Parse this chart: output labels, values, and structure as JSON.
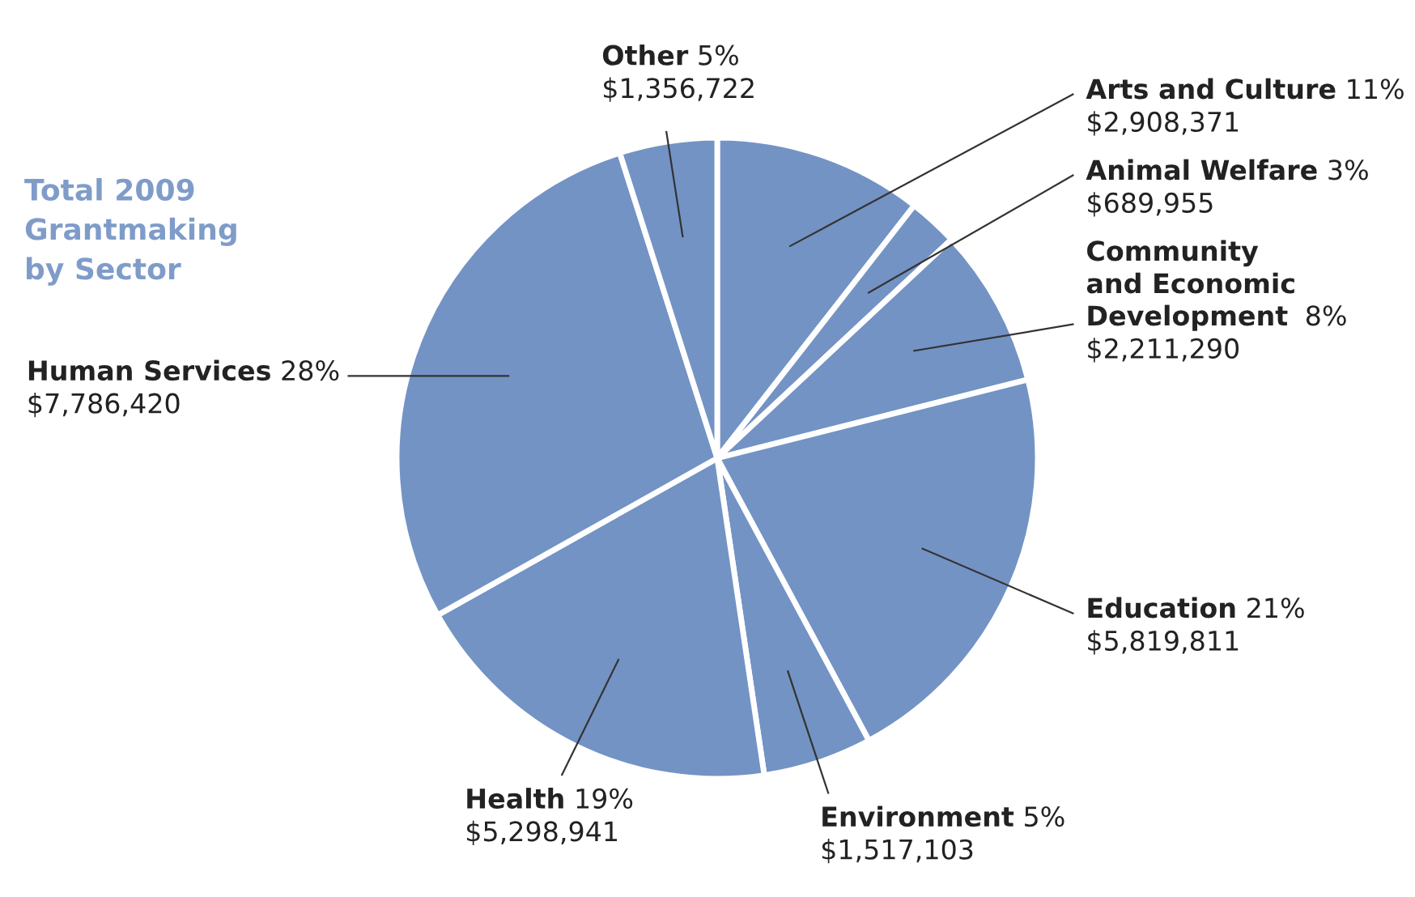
{
  "chart_data": {
    "type": "pie",
    "title": "Total 2009\nGrantmaking\nby Sector",
    "categories": [
      "Arts and Culture",
      "Animal Welfare",
      "Community\nand Economic\nDevelopment",
      "Education",
      "Environment",
      "Health",
      "Human Services",
      "Other"
    ],
    "values": [
      2908371,
      689955,
      2211290,
      5819811,
      1517103,
      5298941,
      7786420,
      1356722
    ],
    "value_labels": [
      "11%\n$2,908,371",
      "3%\n$689,955",
      "8%\n$2,211,290",
      "21%\n$5,819,811",
      "5%\n$1,517,103",
      "19%\n$5,298,941",
      "28%\n$7,786,420",
      "5%\n$1,356,722"
    ],
    "colors": [
      "#7393c4",
      "#7393c4",
      "#7393c4",
      "#7393c4",
      "#7393c4",
      "#7393c4",
      "#7393c4",
      "#7393c4"
    ]
  }
}
